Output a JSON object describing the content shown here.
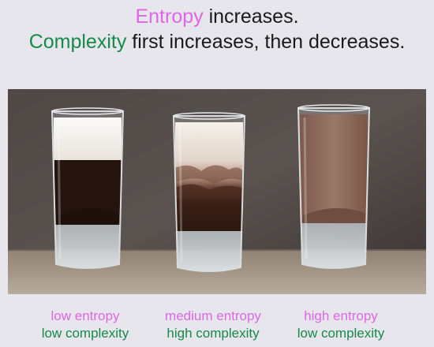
{
  "heading": {
    "line1_highlight": "Entropy",
    "line1_rest": " increases.",
    "line2_highlight": "Complexity",
    "line2_rest": " first increases, then decreases."
  },
  "captions": [
    {
      "entropy": "low entropy",
      "complexity": "low complexity"
    },
    {
      "entropy": "medium entropy",
      "complexity": "high complexity"
    },
    {
      "entropy": "high entropy",
      "complexity": "low complexity"
    }
  ],
  "colors": {
    "entropy": "#e066e6",
    "complexity": "#168a4a",
    "coffee": "#24130e",
    "cream": "#f3f1ec",
    "mixed": "#8a6558"
  }
}
